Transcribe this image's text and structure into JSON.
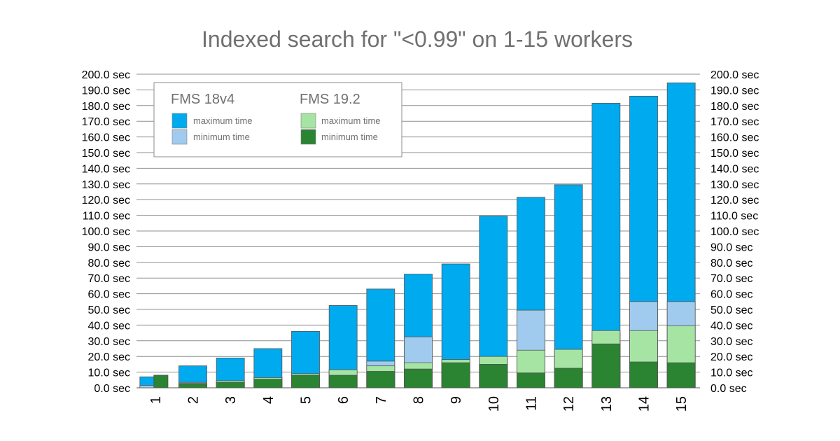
{
  "chart_data": {
    "type": "bar",
    "title": "Indexed search for \"<0.99\" on 1-15 workers",
    "categories": [
      "1",
      "2",
      "3",
      "4",
      "5",
      "6",
      "7",
      "8",
      "9",
      "10",
      "11",
      "12",
      "13",
      "14",
      "15"
    ],
    "ylim": [
      0,
      200
    ],
    "y_ticks": [
      "0.0 sec",
      "10.0 sec",
      "20.0 sec",
      "30.0 sec",
      "40.0 sec",
      "50.0 sec",
      "60.0 sec",
      "70.0 sec",
      "80.0 sec",
      "90.0 sec",
      "100.0 sec",
      "110.0 sec",
      "120.0 sec",
      "130.0 sec",
      "140.0 sec",
      "150.0 sec",
      "160.0 sec",
      "170.0 sec",
      "180.0 sec",
      "190.0 sec",
      "200.0 sec"
    ],
    "grid": "horizontal",
    "legend_position": "top-left",
    "legend": {
      "groups": [
        {
          "name": "FMS 18v4",
          "entries": [
            {
              "label": "maximum time",
              "color": "#00aaee"
            },
            {
              "label": "minimum time",
              "color": "#a0cbee"
            }
          ]
        },
        {
          "name": "FMS 19.2",
          "entries": [
            {
              "label": "maximum time",
              "color": "#a6e4a4"
            },
            {
              "label": "minimum time",
              "color": "#2a8431"
            }
          ]
        }
      ]
    },
    "series": [
      {
        "name": "FMS 18v4 maximum time",
        "color": "#00aaee",
        "values": [
          7,
          14,
          19,
          25,
          36,
          52.5,
          63,
          72.5,
          79,
          109.5,
          121.5,
          129.5,
          181.5,
          186,
          194.5
        ]
      },
      {
        "name": "FMS 18v4 minimum time",
        "color": "#a0cbee",
        "values": [
          1.5,
          3.5,
          4.5,
          6.5,
          9,
          11.5,
          17,
          32.5,
          18,
          19,
          49.5,
          23.5,
          35,
          55,
          55
        ]
      },
      {
        "name": "FMS 19.2 maximum time",
        "color": "#a6e4a4",
        "values": [
          8,
          3,
          4.5,
          6.5,
          9,
          11.5,
          14,
          16,
          18,
          20,
          24,
          24.5,
          36.5,
          36.5,
          39.5
        ]
      },
      {
        "name": "FMS 19.2 minimum time",
        "color": "#2a8431",
        "values": [
          8,
          2.5,
          3.5,
          5.5,
          8,
          8,
          10.5,
          12,
          16,
          15,
          9.5,
          12.5,
          28,
          16.5,
          16
        ]
      }
    ]
  }
}
